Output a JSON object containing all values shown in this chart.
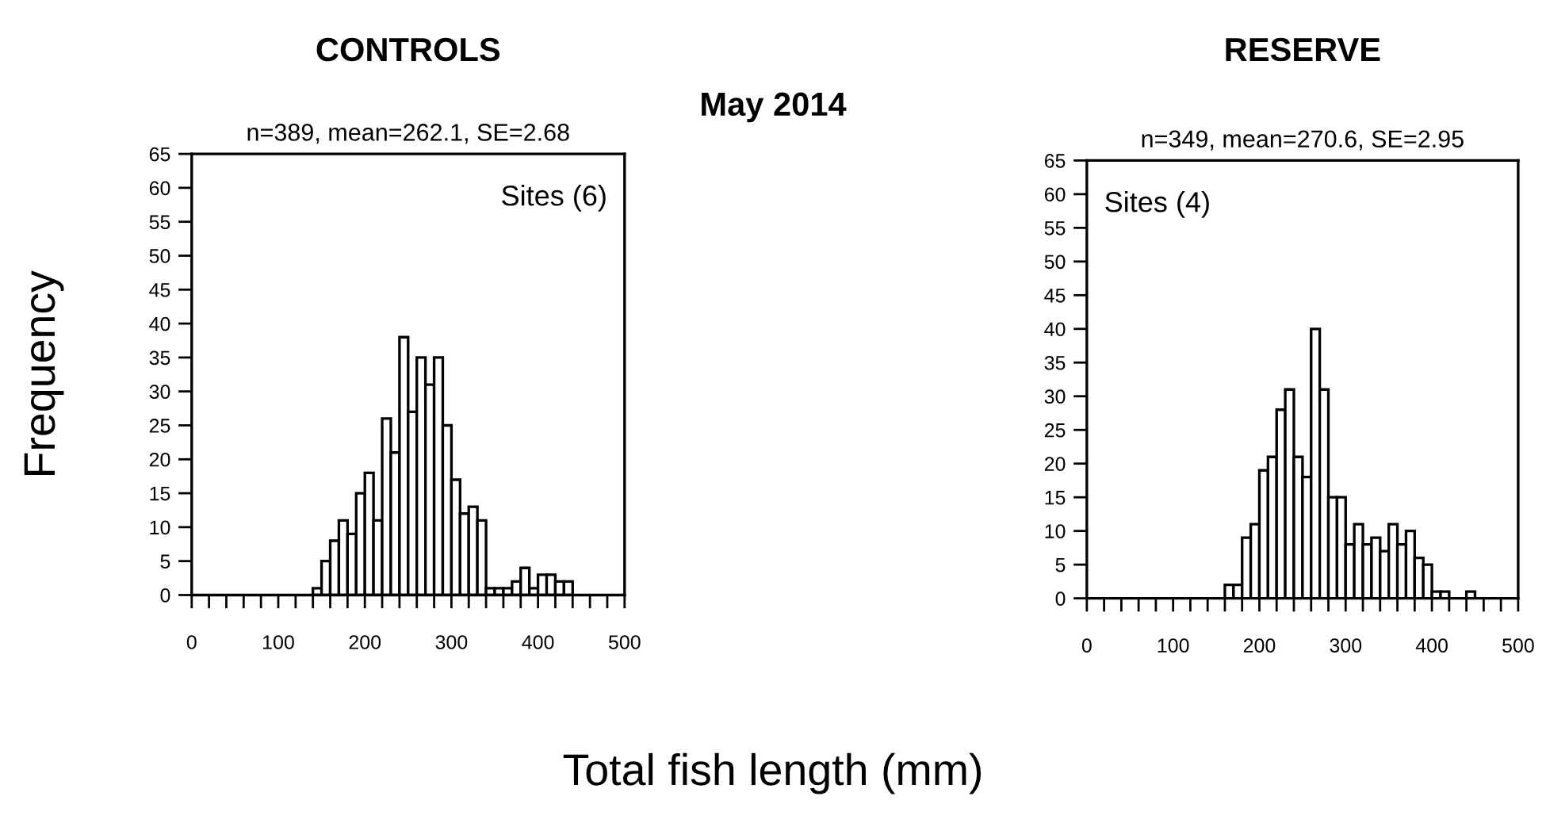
{
  "chart_data": [
    {
      "type": "histogram",
      "title": "CONTROLS",
      "subtitle": "n=389, mean=262.1, SE=2.68",
      "ylabel": "Frequency",
      "xlabel": "Total fish length (mm)",
      "annotations": [
        "Sites (6)",
        "May 2014"
      ],
      "bins": [
        140,
        150,
        160,
        170,
        180,
        190,
        200,
        210,
        220,
        230,
        240,
        250,
        260,
        270,
        280,
        290,
        300,
        310,
        320,
        330,
        340,
        350,
        360,
        370,
        380,
        390,
        400,
        410,
        420,
        430,
        440
      ],
      "values": [
        1,
        5,
        8,
        11,
        9,
        15,
        18,
        11,
        26,
        21,
        38,
        27,
        35,
        31,
        35,
        25,
        17,
        12,
        13,
        11,
        1,
        1,
        1,
        2,
        4,
        1,
        3,
        3,
        2,
        2
      ],
      "color": "#ffffff",
      "xlim": [
        0,
        500
      ],
      "ylim": [
        0,
        65
      ],
      "xticks": [
        0,
        {
          "value": 20,
          "label": null
        },
        {
          "value": 40,
          "label": null
        },
        {
          "value": 60,
          "label": null
        },
        {
          "value": 80,
          "label": null
        },
        100,
        {
          "value": 120,
          "label": null
        },
        {
          "value": 140,
          "label": null
        },
        {
          "value": 160,
          "label": null
        },
        {
          "value": 180,
          "label": null
        },
        200,
        {
          "value": 220,
          "label": null
        },
        {
          "value": 240,
          "label": null
        },
        {
          "value": 260,
          "label": null
        },
        {
          "value": 280,
          "label": null
        },
        300,
        {
          "value": 320,
          "label": null
        },
        {
          "value": 340,
          "label": null
        },
        {
          "value": 360,
          "label": null
        },
        {
          "value": 380,
          "label": null
        },
        400,
        {
          "value": 420,
          "label": null
        },
        {
          "value": 440,
          "label": null
        },
        {
          "value": 460,
          "label": null
        },
        {
          "value": 480,
          "label": null
        },
        500
      ],
      "yticks": [
        0,
        5,
        10,
        15,
        20,
        25,
        30,
        35,
        40,
        45,
        50,
        55,
        60,
        65
      ],
      "grid": false
    },
    {
      "type": "histogram",
      "title": "RESERVE",
      "subtitle": "n=349, mean=270.6, SE=2.95",
      "annotations": [
        "Sites (4)"
      ],
      "bins": [
        160,
        170,
        180,
        190,
        200,
        210,
        220,
        230,
        240,
        250,
        260,
        270,
        280,
        290,
        300,
        310,
        320,
        330,
        340,
        350,
        360,
        370,
        380,
        390,
        400,
        410,
        420,
        430,
        440,
        450
      ],
      "values": [
        2,
        2,
        9,
        11,
        19,
        21,
        28,
        31,
        21,
        18,
        40,
        31,
        15,
        15,
        8,
        11,
        8,
        9,
        7,
        11,
        8,
        10,
        6,
        5,
        1,
        1,
        0,
        0,
        1
      ],
      "color": "#ffffff",
      "xlim": [
        0,
        500
      ],
      "ylim": [
        0,
        65
      ],
      "xticks": [
        0,
        {
          "value": 20,
          "label": null
        },
        {
          "value": 40,
          "label": null
        },
        {
          "value": 60,
          "label": null
        },
        {
          "value": 80,
          "label": null
        },
        100,
        {
          "value": 120,
          "label": null
        },
        {
          "value": 140,
          "label": null
        },
        {
          "value": 160,
          "label": null
        },
        {
          "value": 180,
          "label": null
        },
        200,
        {
          "value": 220,
          "label": null
        },
        {
          "value": 240,
          "label": null
        },
        {
          "value": 260,
          "label": null
        },
        {
          "value": 280,
          "label": null
        },
        300,
        {
          "value": 320,
          "label": null
        },
        {
          "value": 340,
          "label": null
        },
        {
          "value": 360,
          "label": null
        },
        {
          "value": 380,
          "label": null
        },
        400,
        {
          "value": 420,
          "label": null
        },
        {
          "value": 440,
          "label": null
        },
        {
          "value": 460,
          "label": null
        },
        {
          "value": 480,
          "label": null
        },
        500
      ],
      "yticks": [
        0,
        5,
        10,
        15,
        20,
        25,
        30,
        35,
        40,
        45,
        50,
        55,
        60,
        65
      ],
      "grid": false
    }
  ]
}
